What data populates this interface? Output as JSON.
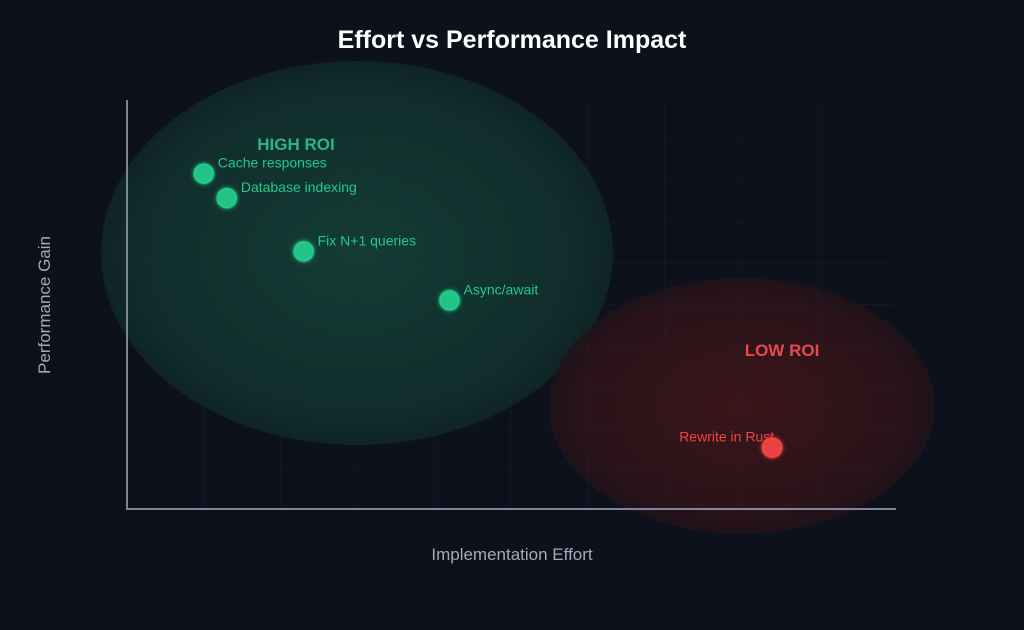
{
  "chart_data": {
    "type": "scatter",
    "title": "Effort vs Performance Impact",
    "xlabel": "Implementation Effort",
    "ylabel": "Performance Gain",
    "xlim": [
      0,
      10
    ],
    "ylim": [
      0,
      10
    ],
    "grid": true,
    "ticks_visible": false,
    "zones": [
      {
        "label": "HIGH ROI",
        "color": "#2bb585"
      },
      {
        "label": "LOW ROI",
        "color": "#e5484d"
      }
    ],
    "points": [
      {
        "label": "Cache responses",
        "x": 1.0,
        "y": 8.2,
        "color": "#22c98a"
      },
      {
        "label": "Database indexing",
        "x": 1.3,
        "y": 7.6,
        "color": "#22c98a"
      },
      {
        "label": "Fix N+1 queries",
        "x": 2.3,
        "y": 6.3,
        "color": "#22c98a"
      },
      {
        "label": "Async/await",
        "x": 4.2,
        "y": 5.1,
        "color": "#22c98a"
      },
      {
        "label": "Rewrite in Rust",
        "x": 8.4,
        "y": 1.5,
        "color": "#ef4444"
      }
    ],
    "colors": {
      "background": "#0c111c",
      "title": "#ffffff",
      "axis": "#7d8597",
      "axis_label": "#a3a9b6",
      "grid": "#1d2a33",
      "high_roi_fill": "#123a33",
      "low_roi_fill": "#3a1418"
    }
  }
}
